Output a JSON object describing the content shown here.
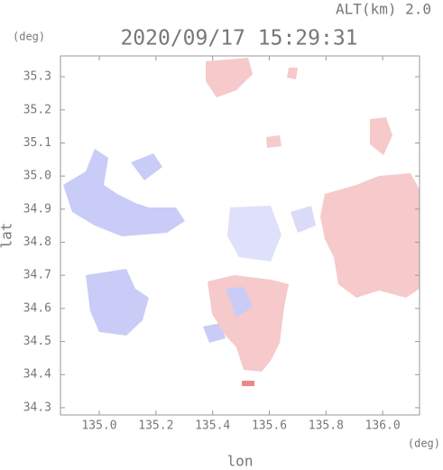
{
  "chart_data": {
    "type": "radar-map",
    "title": "2020/09/17 15:29:31",
    "altitude_label": "ALT(km)  2.0",
    "y_unit": "(deg)",
    "x_unit": "(deg)",
    "x_label": "lon",
    "y_label": "lat",
    "xlim": [
      134.863,
      136.13
    ],
    "ylim": [
      34.278,
      35.363
    ],
    "xticks": [
      {
        "value": 135.0,
        "label": "135.0"
      },
      135.2,
      135.4,
      135.6,
      135.8,
      {
        "value": 136.0,
        "label": "136.0"
      }
    ],
    "yticks": [
      34.3,
      34.4,
      34.5,
      34.6,
      34.7,
      34.8,
      34.9,
      {
        "value": 35.0,
        "label": "35.0"
      },
      35.1,
      35.2,
      35.3
    ]
  }
}
